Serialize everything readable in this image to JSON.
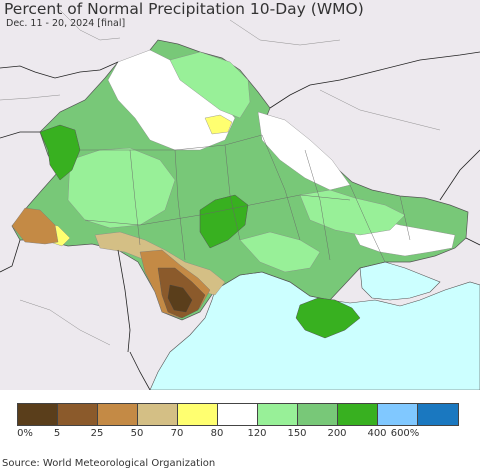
{
  "map": {
    "title": "Percent of Normal Precipitation 10-Day (WMO)",
    "subtitle": "Dec. 11 - 20, 2024 [final]"
  },
  "legend": {
    "colors": [
      "#5a3e1b",
      "#8b5a2b",
      "#c48a45",
      "#d4bf85",
      "#ffff70",
      "#ffffff",
      "#98f098",
      "#78c878",
      "#38b020",
      "#80c8ff",
      "#1a78c0"
    ],
    "ticks": [
      "0%",
      "5",
      "25",
      "50",
      "70",
      "80",
      "120",
      "150",
      "200",
      "400",
      "600%"
    ]
  },
  "footer": {
    "source": "Source: World Meteorological Organization"
  }
}
